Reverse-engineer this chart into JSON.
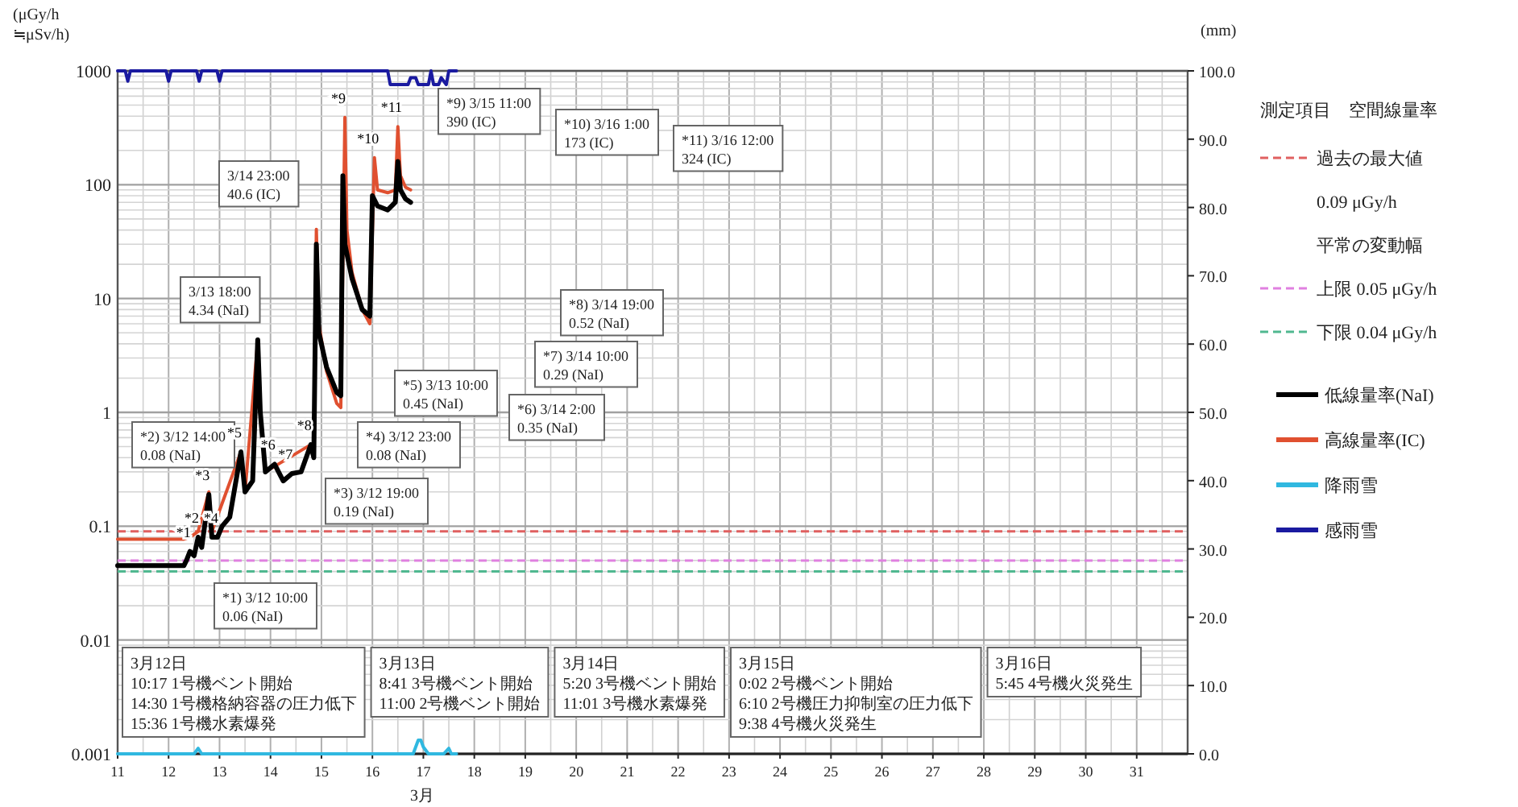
{
  "chart_data": {
    "type": "line",
    "xlabel": "3月",
    "ylabel": "(μGy/h\n≒μSv/h)",
    "y2label": "(mm)",
    "legend_title": "測定項目　空間線量率",
    "xlim": [
      11,
      32
    ],
    "xticks": [
      11,
      12,
      13,
      14,
      15,
      16,
      17,
      18,
      19,
      20,
      21,
      22,
      23,
      24,
      25,
      26,
      27,
      28,
      29,
      30,
      31
    ],
    "ylim": [
      0.001,
      1000
    ],
    "yticks": [
      0.001,
      0.01,
      0.1,
      1,
      10,
      100,
      1000
    ],
    "log": "y",
    "y2lim": [
      0,
      100
    ],
    "y2ticks": [
      {
        "value": 0,
        "label": "0.0"
      },
      {
        "value": 10,
        "label": "10.0"
      },
      {
        "value": 20,
        "label": "20.0"
      },
      {
        "value": 30,
        "label": "30.0"
      },
      {
        "value": 40,
        "label": "40.0"
      },
      {
        "value": 50,
        "label": "50.0"
      },
      {
        "value": 60,
        "label": "60.0"
      },
      {
        "value": 70,
        "label": "70.0"
      },
      {
        "value": 80,
        "label": "80.0"
      },
      {
        "value": 90,
        "label": "90.0"
      },
      {
        "value": 100,
        "label": "100.0"
      }
    ],
    "grid": true,
    "legend": "right",
    "marker": "none",
    "series": [
      {
        "name": "低線量率(NaI)",
        "color": "#000000",
        "x": [
          11.0,
          12.3,
          12.35,
          12.42,
          12.5,
          12.58,
          12.65,
          12.79,
          12.85,
          12.96,
          13.05,
          13.2,
          13.42,
          13.5,
          13.65,
          13.75,
          13.8,
          13.9,
          14.08,
          14.25,
          14.42,
          14.6,
          14.79,
          14.85,
          14.9,
          14.95,
          15.1,
          15.3,
          15.38,
          15.42,
          15.46,
          15.6,
          15.8,
          15.95,
          16.0,
          16.1,
          16.3,
          16.45,
          16.5,
          16.55,
          16.65,
          16.75
        ],
        "values": [
          0.045,
          0.045,
          0.05,
          0.06,
          0.055,
          0.08,
          0.065,
          0.19,
          0.08,
          0.08,
          0.1,
          0.12,
          0.45,
          0.2,
          0.25,
          4.34,
          1.0,
          0.3,
          0.35,
          0.25,
          0.29,
          0.3,
          0.52,
          0.4,
          30,
          5,
          2.5,
          1.5,
          1.4,
          120,
          30,
          15,
          8,
          7,
          80,
          65,
          60,
          70,
          160,
          90,
          75,
          70
        ]
      },
      {
        "name": "高線量率(IC)",
        "color": "#e05030",
        "x": [
          11.0,
          12.3,
          12.42,
          12.58,
          12.79,
          12.85,
          13.42,
          13.5,
          13.75,
          13.8,
          13.9,
          14.79,
          14.85,
          14.9,
          14.95,
          15.1,
          15.3,
          15.38,
          15.46,
          15.5,
          15.6,
          15.8,
          15.95,
          16.04,
          16.1,
          16.3,
          16.45,
          16.5,
          16.55,
          16.65,
          16.75
        ],
        "values": [
          0.077,
          0.077,
          0.08,
          0.09,
          0.2,
          0.09,
          0.45,
          0.2,
          4.3,
          1.0,
          0.3,
          0.52,
          0.4,
          40.6,
          6,
          2.3,
          1.2,
          1.1,
          390,
          40,
          17,
          8,
          6,
          173,
          90,
          85,
          90,
          324,
          120,
          95,
          90
        ]
      },
      {
        "name": "降雨雪",
        "color": "#30b8e0",
        "axis": "y2",
        "x": [
          11,
          12.5,
          12.58,
          12.65,
          16.8,
          16.9,
          16.95,
          17.0,
          17.1,
          17.4,
          17.5,
          17.55,
          17.65
        ],
        "values": [
          0,
          0,
          0.8,
          0,
          0,
          2,
          2,
          1,
          0,
          0,
          0.8,
          0,
          0
        ]
      },
      {
        "name": "感雨雪",
        "color": "#1a1aa0",
        "axis": "y2",
        "x": [
          11,
          11.15,
          11.2,
          11.25,
          11.95,
          12.0,
          12.05,
          12.55,
          12.6,
          12.65,
          12.95,
          13.0,
          13.05,
          16.3,
          16.35,
          16.7,
          16.75,
          16.85,
          16.9,
          17.1,
          17.15,
          17.2,
          17.3,
          17.35,
          17.45,
          17.5,
          17.65
        ],
        "values": [
          100,
          100,
          98.5,
          100,
          100,
          98.5,
          100,
          100,
          98.5,
          100,
          100,
          98.5,
          100,
          100,
          98,
          98,
          99,
          99,
          98,
          98,
          100,
          98,
          98,
          99,
          98,
          100,
          100
        ]
      }
    ],
    "ref_lines": [
      {
        "axis": "y",
        "value": 0.09,
        "label": "過去の最大値",
        "color": "#e06060",
        "line_style": "dashed"
      },
      {
        "axis": "y",
        "value": 0.05,
        "label": "上限 0.05 μGy/h",
        "color": "#e080e0",
        "line_style": "dashed"
      },
      {
        "axis": "y",
        "value": 0.04,
        "label": "下限 0.04 μGy/h",
        "color": "#50b890",
        "line_style": "dashed"
      }
    ],
    "annotations": [
      "*1) 3/12 10:00\n0.06 (NaI)",
      "*2) 3/12 14:00\n0.08 (NaI)",
      "*3) 3/12 19:00\n0.19 (NaI)",
      "*4) 3/12 23:00\n0.08 (NaI)",
      "*5) 3/13 10:00\n0.45 (NaI)",
      "3/13 18:00\n4.34 (NaI)",
      "*6) 3/14 2:00\n0.35 (NaI)",
      "*7) 3/14 10:00\n0.29 (NaI)",
      "*8) 3/14 19:00\n0.52 (NaI)",
      "3/14 23:00\n40.6 (IC)",
      "*9) 3/15 11:00\n390 (IC)",
      "*10) 3/16 1:00\n173 (IC)",
      "*11) 3/16 12:00\n324 (IC)",
      {
        "text": "*1",
        "x": 12.42,
        "y": 0.06
      },
      {
        "text": "*2",
        "x": 12.58,
        "y": 0.08
      },
      {
        "text": "*3",
        "x": 12.79,
        "y": 0.19
      },
      {
        "text": "*4",
        "x": 12.96,
        "y": 0.08
      },
      {
        "text": "*5",
        "x": 13.42,
        "y": 0.45
      },
      {
        "text": "*6",
        "x": 14.08,
        "y": 0.35
      },
      {
        "text": "*7",
        "x": 14.42,
        "y": 0.29
      },
      {
        "text": "*8",
        "x": 14.79,
        "y": 0.52
      },
      {
        "text": "*9",
        "x": 15.46,
        "y": 390
      },
      {
        "text": "*10",
        "x": 16.04,
        "y": 173
      },
      {
        "text": "*11",
        "x": 16.5,
        "y": 324
      },
      "3月12日\n10:17 1号機ベント開始\n14:30 1号機格納容器の圧力低下\n15:36 1号機水素爆発",
      "3月13日\n8:41 3号機ベント開始\n11:00 2号機ベント開始",
      "3月14日\n5:20 3号機ベント開始\n11:01 3号機水素爆発",
      "3月15日\n0:02 2号機ベント開始\n6:10 2号機圧力抑制室の圧力低下\n9:38 4号機火災発生",
      "3月16日\n5:45 4号機火災発生",
      "0.09 μGy/h",
      "平常の変動幅"
    ]
  }
}
